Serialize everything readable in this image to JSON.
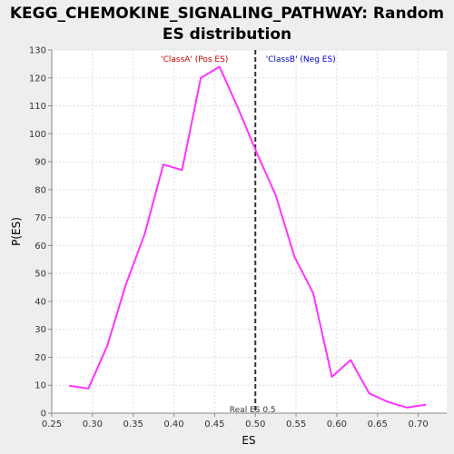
{
  "chart_data": {
    "type": "line",
    "title_line1": "KEGG_CHEMOKINE_SIGNALING_PATHWAY: Random",
    "title_line2": "ES distribution",
    "xlabel": "ES",
    "ylabel": "P(ES)",
    "xlim": [
      0.25,
      0.735
    ],
    "ylim": [
      0,
      130
    ],
    "xticks": [
      "0.25",
      "0.30",
      "0.35",
      "0.40",
      "0.45",
      "0.50",
      "0.55",
      "0.60",
      "0.65",
      "0.70"
    ],
    "yticks": [
      "0",
      "10",
      "20",
      "30",
      "40",
      "50",
      "60",
      "70",
      "80",
      "90",
      "100",
      "110",
      "120",
      "130"
    ],
    "grid": true,
    "series": [
      {
        "color": "#ff33ff",
        "x": [
          0.272,
          0.295,
          0.318,
          0.341,
          0.364,
          0.387,
          0.41,
          0.433,
          0.456,
          0.479,
          0.502,
          0.525,
          0.548,
          0.571,
          0.594,
          0.617,
          0.64,
          0.663,
          0.686,
          0.709
        ],
        "y": [
          9.8,
          8.8,
          24,
          46,
          64,
          89,
          87,
          120,
          124,
          109,
          93,
          78,
          56,
          43,
          13,
          19,
          7,
          4,
          2,
          3
        ]
      }
    ],
    "real_es": {
      "value": 0.5,
      "label": "Real ES 0.5"
    },
    "annotations": {
      "pos_label": "'ClassA' (Pos ES)",
      "neg_label": "'ClassB' (Neg ES)",
      "pos_color": "#cc0000",
      "neg_color": "#0000cc"
    },
    "colors": {
      "plot_bg": "#ffffff",
      "page_bg": "#eeeeee",
      "grid": "#dddddd",
      "axis": "#888888",
      "real_es_line": "#333333"
    }
  }
}
